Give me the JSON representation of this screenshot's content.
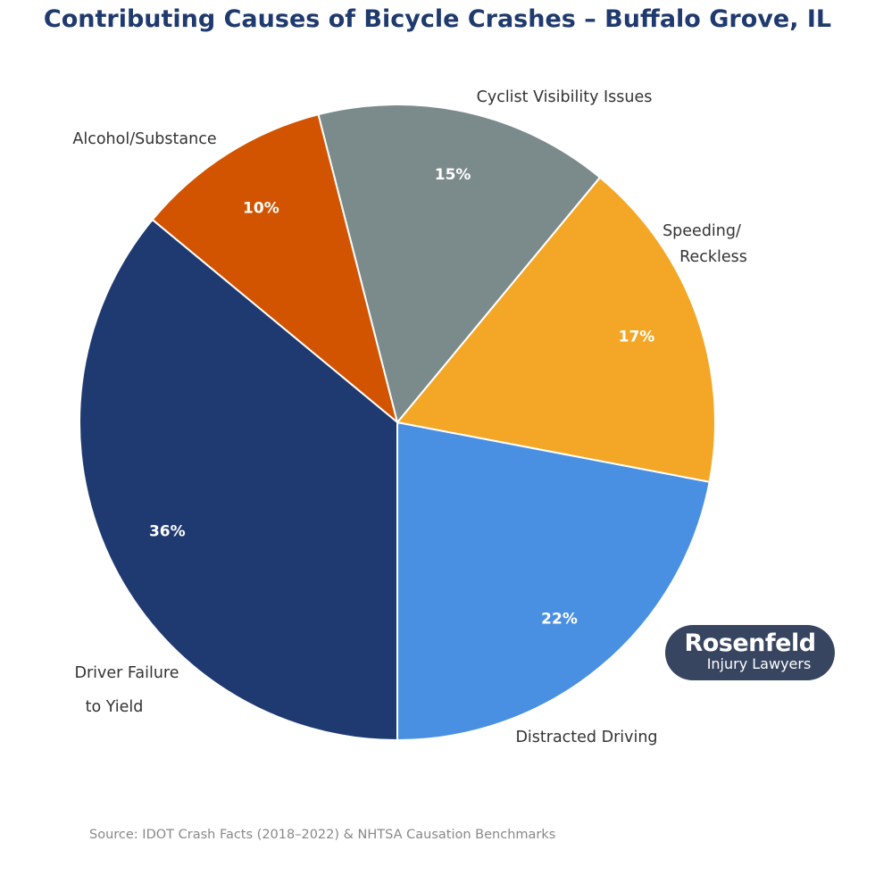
{
  "chart_data": {
    "type": "pie",
    "title": "Contributing Causes of Bicycle Crashes – Buffalo Grove, IL",
    "start_angle": "bottom",
    "direction": "counterclockwise",
    "slices": [
      {
        "label": [
          "Distracted Driving"
        ],
        "value": 22,
        "pct_label": "22%",
        "color": "#4a90e2"
      },
      {
        "label": [
          "Speeding/",
          "Reckless"
        ],
        "value": 17,
        "pct_label": "17%",
        "color": "#f4a726"
      },
      {
        "label": [
          "Cyclist Visibility Issues"
        ],
        "value": 15,
        "pct_label": "15%",
        "color": "#7b8a8b"
      },
      {
        "label": [
          "Alcohol/Substance"
        ],
        "value": 10,
        "pct_label": "10%",
        "color": "#d35400"
      },
      {
        "label": [
          "Driver Failure",
          "to Yield"
        ],
        "value": 36,
        "pct_label": "36%",
        "color": "#1f3a70"
      }
    ],
    "source": "Source: IDOT Crash Facts (2018–2022) & NHTSA Causation Benchmarks"
  },
  "logo": {
    "line1": "Rosenfeld",
    "line2": "Injury Lawyers"
  }
}
